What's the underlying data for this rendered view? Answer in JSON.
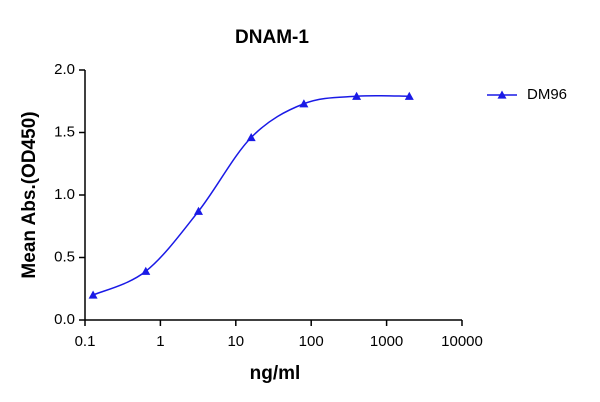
{
  "chart_data": {
    "type": "scatter",
    "title": "DNAM-1",
    "x_label": "ng/ml",
    "y_label": "Mean Abs.(OD450)",
    "x_scale": "log",
    "series": [
      {
        "name": "DM96",
        "color": "#1a1ae6",
        "x": [
          0.128,
          0.64,
          3.2,
          16,
          80,
          400,
          2000
        ],
        "values": [
          0.2,
          0.39,
          0.87,
          1.46,
          1.73,
          1.79,
          1.79
        ]
      }
    ],
    "xlim": [
      0.1,
      10000
    ],
    "xticks": [
      0.1,
      1,
      10,
      100,
      1000,
      10000
    ],
    "ylim": [
      0,
      2
    ],
    "yticks": [
      {
        "value": 0,
        "label": "0.0"
      },
      {
        "value": 0.5,
        "label": "0.5"
      },
      {
        "value": 1,
        "label": "1.0"
      },
      {
        "value": 1.5,
        "label": "1.5"
      },
      {
        "value": 2,
        "label": "2.0"
      }
    ],
    "legend": "right"
  }
}
